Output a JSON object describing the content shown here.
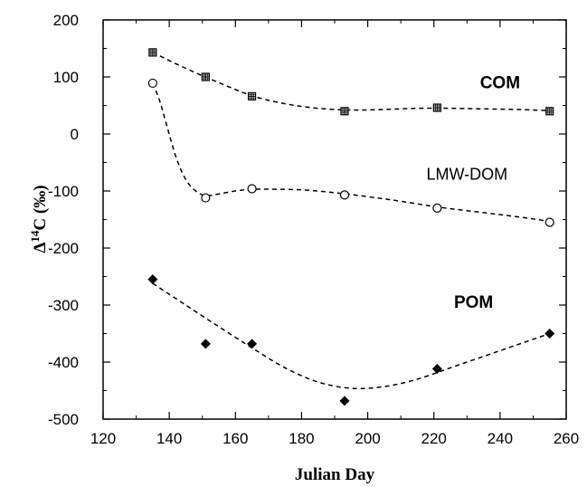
{
  "chart_data": {
    "type": "scatter",
    "xlabel": "Julian Day",
    "ylabel_main": "Δ",
    "ylabel_sup": "14",
    "ylabel_rest": "C (‰)",
    "xlim": [
      120,
      260
    ],
    "ylim": [
      -500,
      200
    ],
    "xticks": [
      120,
      140,
      160,
      180,
      200,
      220,
      240,
      260
    ],
    "yticks": [
      200,
      100,
      0,
      -100,
      -200,
      -300,
      -400,
      -500
    ],
    "grid": false,
    "series": [
      {
        "name": "COM",
        "marker": "hatched-square",
        "points": [
          [
            135,
            143
          ],
          [
            151,
            100
          ],
          [
            165,
            66
          ],
          [
            193,
            40
          ],
          [
            221,
            46
          ],
          [
            255,
            40
          ]
        ],
        "trend": [
          [
            135,
            143
          ],
          [
            145,
            115
          ],
          [
            155,
            90
          ],
          [
            165,
            67
          ],
          [
            175,
            53
          ],
          [
            185,
            45
          ],
          [
            195,
            42
          ],
          [
            205,
            43
          ],
          [
            215,
            45
          ],
          [
            225,
            45
          ],
          [
            235,
            44
          ],
          [
            245,
            43
          ],
          [
            255,
            41
          ]
        ]
      },
      {
        "name": "LMW-DOM",
        "marker": "open-circle",
        "points": [
          [
            135,
            89
          ],
          [
            151,
            -112
          ],
          [
            165,
            -96
          ],
          [
            193,
            -107
          ],
          [
            221,
            -130
          ],
          [
            255,
            -155
          ]
        ],
        "trend": [
          [
            135,
            89
          ],
          [
            137,
            60
          ],
          [
            139,
            20
          ],
          [
            142,
            -40
          ],
          [
            145,
            -80
          ],
          [
            148,
            -100
          ],
          [
            151,
            -108
          ],
          [
            155,
            -105
          ],
          [
            160,
            -100
          ],
          [
            165,
            -97
          ],
          [
            172,
            -97
          ],
          [
            180,
            -98
          ],
          [
            190,
            -103
          ],
          [
            200,
            -110
          ],
          [
            210,
            -118
          ],
          [
            221,
            -128
          ],
          [
            235,
            -138
          ],
          [
            245,
            -145
          ],
          [
            255,
            -153
          ]
        ]
      },
      {
        "name": "POM",
        "marker": "filled-diamond",
        "points": [
          [
            135,
            -255
          ],
          [
            151,
            -368
          ],
          [
            165,
            -368
          ],
          [
            193,
            -468
          ],
          [
            221,
            -412
          ],
          [
            255,
            -350
          ]
        ],
        "trend": [
          [
            135,
            -262
          ],
          [
            145,
            -300
          ],
          [
            155,
            -338
          ],
          [
            165,
            -375
          ],
          [
            175,
            -410
          ],
          [
            185,
            -435
          ],
          [
            195,
            -446
          ],
          [
            205,
            -443
          ],
          [
            215,
            -430
          ],
          [
            225,
            -410
          ],
          [
            235,
            -390
          ],
          [
            245,
            -370
          ],
          [
            255,
            -350
          ]
        ]
      }
    ]
  }
}
